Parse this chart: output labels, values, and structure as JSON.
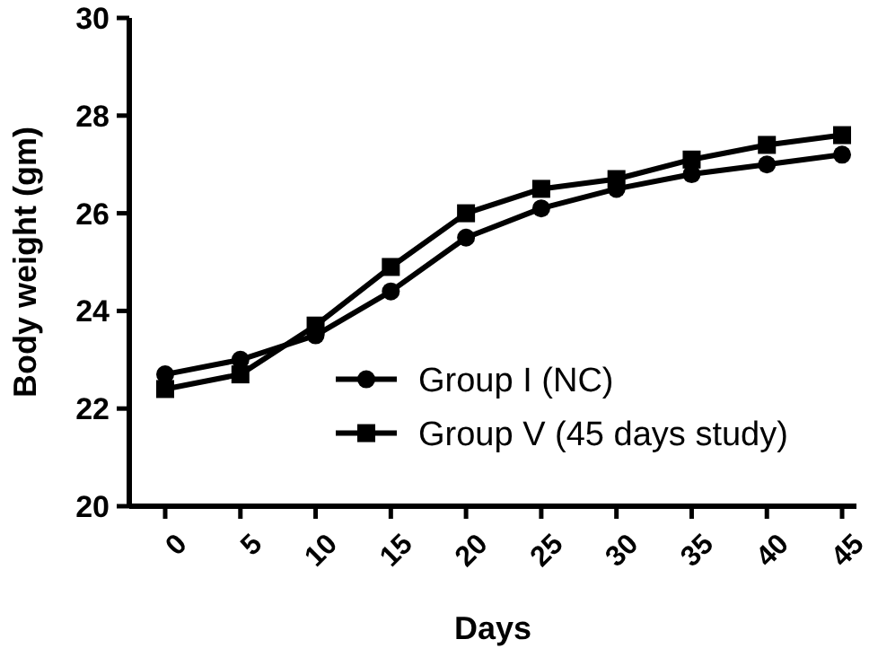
{
  "chart_data": {
    "type": "line",
    "xlabel": "Days",
    "ylabel": "Body weight (gm)",
    "categories": [
      "0",
      "5",
      "10",
      "15",
      "20",
      "25",
      "30",
      "35",
      "40",
      "45"
    ],
    "series": [
      {
        "name": "Group I (NC)",
        "color": "#000000",
        "marker": "circle",
        "values": [
          22.7,
          23.0,
          23.5,
          24.4,
          25.5,
          26.1,
          26.5,
          26.8,
          27.0,
          27.2
        ]
      },
      {
        "name": "Group V (45 days study)",
        "color": "#000000",
        "marker": "square",
        "values": [
          22.4,
          22.7,
          23.7,
          24.9,
          26.0,
          26.5,
          26.7,
          27.1,
          27.4,
          27.6
        ]
      }
    ],
    "ylim": [
      20,
      30
    ],
    "yticks": [
      20,
      22,
      24,
      26,
      28,
      30
    ],
    "grid": false,
    "legend": "bottom right",
    "line_style": "solid"
  }
}
